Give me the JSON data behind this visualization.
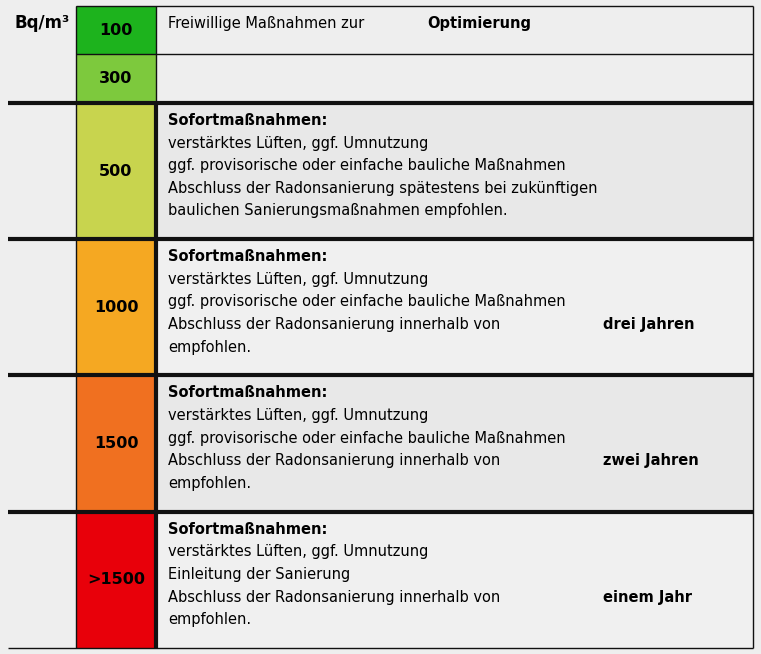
{
  "header_label": "Bq/m³",
  "background_color": "#eeeeee",
  "rows": [
    {
      "label": "100",
      "color": "#1db31d",
      "row_bg": "#eeeeee",
      "text_lines": [
        [
          {
            "text": "Freiwillige Maßnahmen zur ",
            "bold": false
          },
          {
            "text": "Optimierung",
            "bold": true
          }
        ]
      ]
    },
    {
      "label": "300",
      "color": "#7dc93d",
      "row_bg": "#eeeeee",
      "text_lines": []
    },
    {
      "label": "500",
      "color": "#c8d44e",
      "row_bg": "#e8e8e8",
      "text_lines": [
        [
          {
            "text": "Sofortmaßnahmen:",
            "bold": true
          }
        ],
        [
          {
            "text": "verstärktes Lüften, ggf. Umnutzung",
            "bold": false
          }
        ],
        [
          {
            "text": "ggf. provisorische oder einfache bauliche Maßnahmen",
            "bold": false
          }
        ],
        [
          {
            "text": "Abschluss der Radonsanierung spätestens bei zukünftigen",
            "bold": false
          }
        ],
        [
          {
            "text": "baulichen Sanierungsmaßnahmen empfohlen.",
            "bold": false
          }
        ]
      ]
    },
    {
      "label": "1000",
      "color": "#f5a822",
      "row_bg": "#f0f0f0",
      "text_lines": [
        [
          {
            "text": "Sofortmaßnahmen:",
            "bold": true
          }
        ],
        [
          {
            "text": "verstärktes Lüften, ggf. Umnutzung",
            "bold": false
          }
        ],
        [
          {
            "text": "ggf. provisorische oder einfache bauliche Maßnahmen",
            "bold": false
          }
        ],
        [
          {
            "text": "Abschluss der Radonsanierung innerhalb von ",
            "bold": false
          },
          {
            "text": "drei Jahren",
            "bold": true
          }
        ],
        [
          {
            "text": "empfohlen.",
            "bold": false
          }
        ]
      ]
    },
    {
      "label": "1500",
      "color": "#f07020",
      "row_bg": "#e8e8e8",
      "text_lines": [
        [
          {
            "text": "Sofortmaßnahmen:",
            "bold": true
          }
        ],
        [
          {
            "text": "verstärktes Lüften, ggf. Umnutzung",
            "bold": false
          }
        ],
        [
          {
            "text": "ggf. provisorische oder einfache bauliche Maßnahmen",
            "bold": false
          }
        ],
        [
          {
            "text": "Abschluss der Radonsanierung innerhalb von ",
            "bold": false
          },
          {
            "text": "zwei Jahren",
            "bold": true
          }
        ],
        [
          {
            "text": "empfohlen.",
            "bold": false
          }
        ]
      ]
    },
    {
      "label": ">1500",
      "color": "#e8000a",
      "row_bg": "#f0f0f0",
      "text_lines": [
        [
          {
            "text": "Sofortmaßnahmen:",
            "bold": true
          }
        ],
        [
          {
            "text": "verstärktes Lüften, ggf. Umnutzung",
            "bold": false
          }
        ],
        [
          {
            "text": "Einleitung der Sanierung",
            "bold": false
          }
        ],
        [
          {
            "text": "Abschluss der Radonsanierung innerhalb von ",
            "bold": false
          },
          {
            "text": "einem Jahr",
            "bold": true
          }
        ],
        [
          {
            "text": "empfohlen.",
            "bold": false
          }
        ]
      ]
    }
  ],
  "border_color": "#111111",
  "font_size": 10.5,
  "label_font_size": 11.5,
  "header_font_size": 12
}
